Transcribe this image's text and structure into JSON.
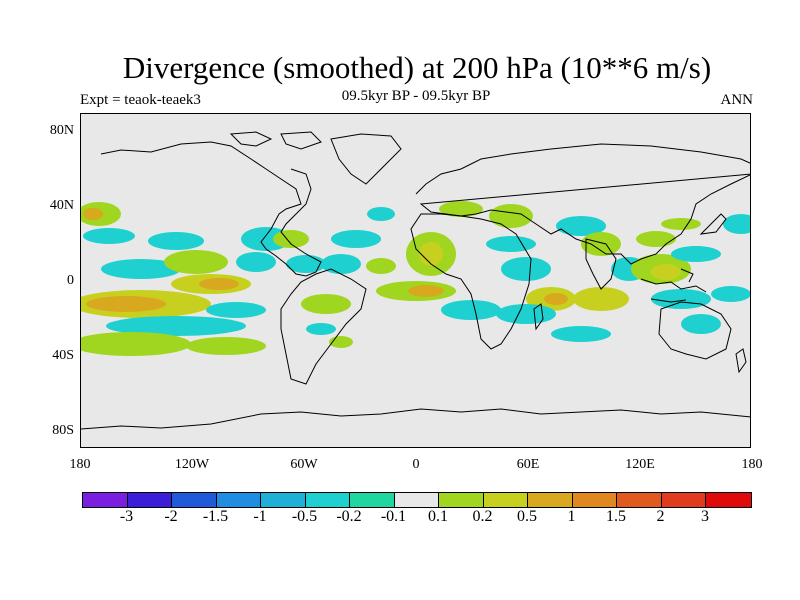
{
  "title": "Divergence (smoothed) at 200 hPa (10**6 m/s)",
  "experiment_label": "Expt = teaok-teaek3",
  "period_label": "09.5kyr BP - 09.5kyr BP",
  "season_label": "ANN",
  "y_axis_labels": [
    "80N",
    "40N",
    "0",
    "40S",
    "80S"
  ],
  "x_axis_labels": [
    "180",
    "120W",
    "60W",
    "0",
    "60E",
    "120E",
    "180"
  ],
  "colorbar": {
    "colors": [
      "#7a1fe0",
      "#3b1fd8",
      "#1f5ad8",
      "#1f8ee0",
      "#1fb0d8",
      "#1fd0d0",
      "#1fd6a0",
      "#e8e8e8",
      "#a0d61f",
      "#c8d01f",
      "#d8a81f",
      "#e0881f",
      "#e05a1f",
      "#e03a1f",
      "#e00a0a"
    ],
    "labels": [
      "-3",
      "-2",
      "-1.5",
      "-1",
      "-0.5",
      "-0.2",
      "-0.1",
      "0.1",
      "0.2",
      "0.5",
      "1",
      "1.5",
      "2",
      "3"
    ]
  },
  "chart_data": {
    "type": "heatmap",
    "title": "Divergence (smoothed) at 200 hPa (10**6 m/s)",
    "variable": "200 hPa divergence difference",
    "x_range": [
      -180,
      180
    ],
    "y_range": [
      -90,
      90
    ],
    "contour_levels": [
      -3,
      -2,
      -1.5,
      -1,
      -0.5,
      -0.2,
      -0.1,
      0.1,
      0.2,
      0.5,
      1,
      1.5,
      2,
      3
    ]
  }
}
